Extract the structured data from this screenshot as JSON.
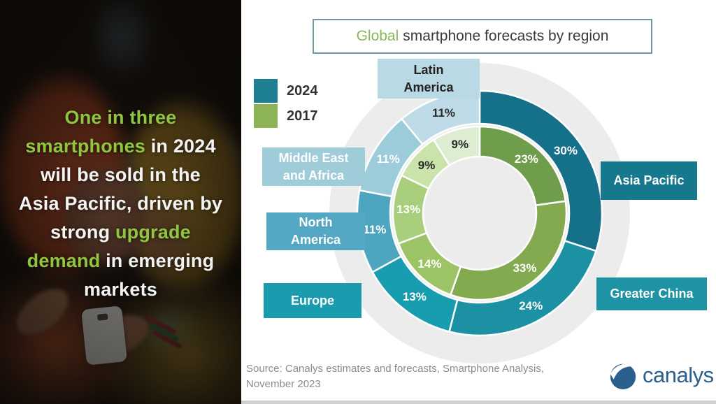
{
  "left_panel": {
    "highlight_color": "#8fc640",
    "text_color": "#f4f4f2",
    "headline_lines": [
      [
        {
          "t": "One in three",
          "g": true
        }
      ],
      [
        {
          "t": "smartphones",
          "g": true
        },
        {
          "t": " in 2024",
          "g": false
        }
      ],
      [
        {
          "t": "will be sold in the",
          "g": false
        }
      ],
      [
        {
          "t": "Asia Pacific, driven by",
          "g": false
        }
      ],
      [
        {
          "t": "strong ",
          "g": false
        },
        {
          "t": "upgrade",
          "g": true
        }
      ],
      [
        {
          "t": "demand",
          "g": true
        },
        {
          "t": " in emerging",
          "g": false
        }
      ],
      [
        {
          "t": "markets",
          "g": false
        }
      ]
    ]
  },
  "header": {
    "title_highlight": "Global",
    "title_rest": "smartphone forecasts by region"
  },
  "legend": {
    "items": [
      {
        "label": "2024",
        "color": "#1f7f93"
      },
      {
        "label": "2017",
        "color": "#8cb355"
      }
    ]
  },
  "chart_data": {
    "type": "donut",
    "title": "Global smartphone forecasts by region",
    "outer_ring_series": "2024",
    "inner_ring_series": "2017",
    "start_angle_deg": 0,
    "clockwise": true,
    "regions": [
      {
        "name": "Asia Pacific",
        "label_lines": [
          "Asia Pacific"
        ],
        "share_2024": 30,
        "share_2017": 23,
        "color_2024": "#15708a",
        "color_2017": "#6f9d4b",
        "pct_color_2024": "#ffffff",
        "pct_color_2017": "#ffffff",
        "box_color": "#15788c",
        "box_text": "#ffffff"
      },
      {
        "name": "Greater China",
        "label_lines": [
          "Greater China"
        ],
        "share_2024": 24,
        "share_2017": 33,
        "color_2024": "#1b91a3",
        "color_2017": "#84aa50",
        "pct_color_2024": "#ffffff",
        "pct_color_2017": "#ffffff",
        "box_color": "#1d93a4",
        "box_text": "#ffffff"
      },
      {
        "name": "Europe",
        "label_lines": [
          "Europe"
        ],
        "share_2024": 13,
        "share_2017": 14,
        "color_2024": "#189db0",
        "color_2017": "#9cc466",
        "pct_color_2024": "#ffffff",
        "pct_color_2017": "#ffffff",
        "box_color": "#1b9cae",
        "box_text": "#ffffff"
      },
      {
        "name": "North America",
        "label_lines": [
          "North",
          "America"
        ],
        "share_2024": 11,
        "share_2017": 13,
        "color_2024": "#4ea5c0",
        "color_2017": "#a9cf7d",
        "pct_color_2024": "#ffffff",
        "pct_color_2017": "#ffffff",
        "box_color": "#55a8c3",
        "box_text": "#ffffff"
      },
      {
        "name": "Middle East and Africa",
        "label_lines": [
          "Middle East",
          "and Africa"
        ],
        "share_2024": 11,
        "share_2017": 9,
        "color_2024": "#9ccbd9",
        "color_2017": "#c9e3ab",
        "pct_color_2024": "#ffffff",
        "pct_color_2017": "#2b2b2b",
        "box_color": "#9fccd9",
        "box_text": "#ffffff"
      },
      {
        "name": "Latin America",
        "label_lines": [
          "Latin",
          "America"
        ],
        "share_2024": 11,
        "share_2017": 9,
        "color_2024": "#bedbe7",
        "color_2017": "#dcedd2",
        "pct_color_2024": "#2b2b2b",
        "pct_color_2017": "#2b2b2b",
        "box_color": "#b9d9e4",
        "box_text": "#222222"
      }
    ]
  },
  "source": {
    "line1": "Source: Canalys estimates and forecasts, Smartphone Analysis,",
    "line2": "November 2023"
  },
  "logo": {
    "text": "canalys",
    "color": "#2b5f8d"
  }
}
